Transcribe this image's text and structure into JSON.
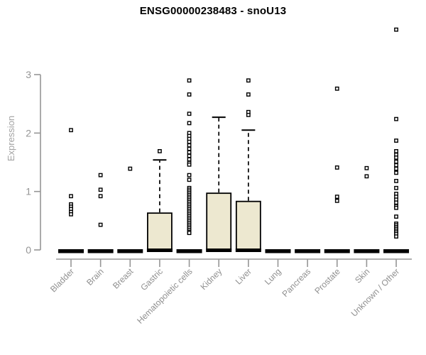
{
  "title": "ENSG00000238483 - snoU13",
  "chart_data": {
    "type": "boxplot",
    "title": "ENSG00000238483 - snoU13",
    "xlabel": "",
    "ylabel": "Expression",
    "yticks": [
      0,
      1,
      2,
      3
    ],
    "ylim": [
      0,
      3.9
    ],
    "grid": false,
    "legend": false,
    "colors": {
      "box_fill": "#EDE8D0",
      "box_stroke": "#000000",
      "axis_color": "#969696",
      "tick_label_color": "#959595",
      "x_label_color": "#8f8f8f",
      "ylabel_color": "#a3a3a3",
      "title_color": "#000000"
    },
    "categories": [
      "Bladder",
      "Brain",
      "Breast",
      "Gastric",
      "Hematopoietic cells",
      "Kidney",
      "Liver",
      "Lung",
      "Pancreas",
      "Prostate",
      "Skin",
      "Unknown / Other"
    ],
    "series": [
      {
        "name": "Bladder",
        "median": 0,
        "q1": 0,
        "q3": 0,
        "whisker_low": 0,
        "whisker_high": 0,
        "outliers": [
          2.05,
          0.92,
          0.78,
          0.74,
          0.7,
          0.65,
          0.61
        ]
      },
      {
        "name": "Brain",
        "median": 0,
        "q1": 0,
        "q3": 0,
        "whisker_low": 0,
        "whisker_high": 0,
        "outliers": [
          1.28,
          1.03,
          0.92,
          0.43
        ]
      },
      {
        "name": "Breast",
        "median": 0,
        "q1": 0,
        "q3": 0,
        "whisker_low": 0,
        "whisker_high": 0,
        "outliers": [
          1.39
        ]
      },
      {
        "name": "Gastric",
        "median": 0,
        "q1": 0,
        "q3": 0.63,
        "whisker_low": 0,
        "whisker_high": 1.54,
        "outliers": [
          1.69
        ]
      },
      {
        "name": "Hematopoietic cells",
        "median": 0,
        "q1": 0,
        "q3": 0,
        "whisker_low": 0,
        "whisker_high": 0,
        "outliers": [
          2.9,
          2.66,
          2.33,
          2.17,
          2.0,
          1.95,
          1.9,
          1.85,
          1.79,
          1.73,
          1.67,
          1.61,
          1.55,
          1.49,
          1.46,
          1.28,
          1.2,
          1.06,
          1.03,
          1.0,
          0.97,
          0.94,
          0.91,
          0.88,
          0.85,
          0.82,
          0.79,
          0.76,
          0.73,
          0.7,
          0.67,
          0.64,
          0.61,
          0.58,
          0.55,
          0.52,
          0.49,
          0.46,
          0.43,
          0.4,
          0.37,
          0.34,
          0.31,
          0.29
        ]
      },
      {
        "name": "Kidney",
        "median": 0,
        "q1": 0,
        "q3": 0.97,
        "whisker_low": 0,
        "whisker_high": 2.27,
        "outliers": []
      },
      {
        "name": "Liver",
        "median": 0,
        "q1": 0,
        "q3": 0.83,
        "whisker_low": 0,
        "whisker_high": 2.05,
        "outliers": [
          2.9,
          2.66,
          2.36,
          2.31
        ]
      },
      {
        "name": "Lung",
        "median": 0,
        "q1": 0,
        "q3": 0,
        "whisker_low": 0,
        "whisker_high": 0,
        "outliers": []
      },
      {
        "name": "Pancreas",
        "median": 0,
        "q1": 0,
        "q3": 0,
        "whisker_low": 0,
        "whisker_high": 0,
        "outliers": []
      },
      {
        "name": "Prostate",
        "median": 0,
        "q1": 0,
        "q3": 0,
        "whisker_low": 0,
        "whisker_high": 0,
        "outliers": [
          2.76,
          1.41,
          0.91,
          0.84
        ]
      },
      {
        "name": "Skin",
        "median": 0,
        "q1": 0,
        "q3": 0,
        "whisker_low": 0,
        "whisker_high": 0,
        "outliers": [
          1.4,
          1.26
        ]
      },
      {
        "name": "Unknown / Other",
        "median": 0,
        "q1": 0,
        "q3": 0,
        "whisker_low": 0,
        "whisker_high": 0,
        "outliers": [
          3.77,
          2.24,
          1.87,
          1.69,
          1.63,
          1.58,
          1.51,
          1.45,
          1.39,
          1.32,
          1.18,
          1.06,
          0.96,
          0.91,
          0.86,
          0.81,
          0.75,
          0.72,
          0.57,
          0.45,
          0.42,
          0.39,
          0.36,
          0.33,
          0.3,
          0.27,
          0.23
        ]
      }
    ]
  }
}
